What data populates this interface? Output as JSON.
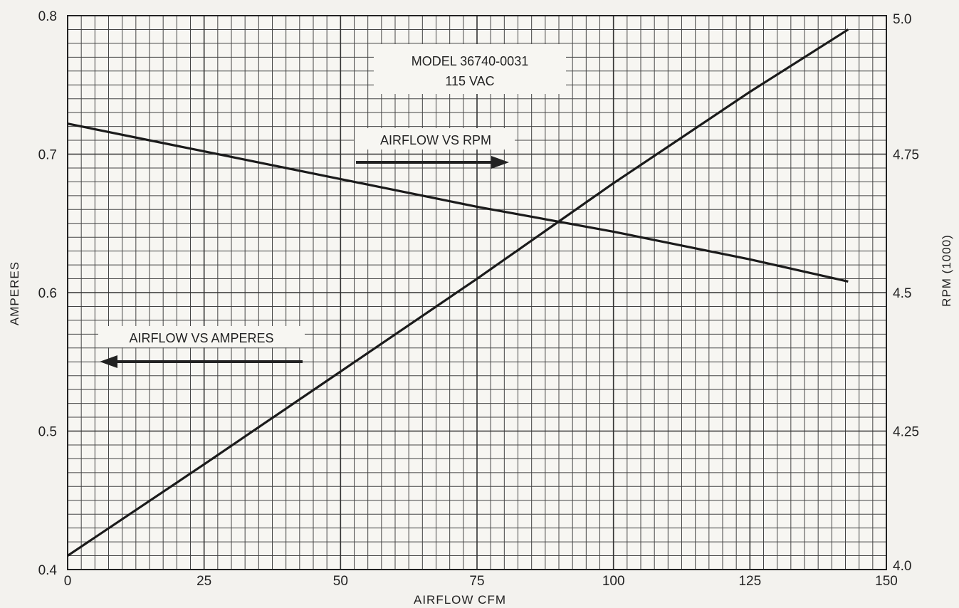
{
  "chart_data": {
    "type": "line",
    "xlabel": "AIRFLOW CFM",
    "ylabel_left": "AMPERES",
    "ylabel_right": "RPM (1000)",
    "xlim": [
      0,
      150
    ],
    "ylim_left": [
      0.4,
      0.8
    ],
    "ylim_right": [
      4.0,
      5.0
    ],
    "grid": true,
    "x_ticks": [
      "0",
      "25",
      "50",
      "75",
      "100",
      "125",
      "150"
    ],
    "y_left_ticks": [
      "0.4",
      "0.5",
      "0.6",
      "0.7",
      "0.8"
    ],
    "y_right_ticks": [
      "4.0",
      "4.25",
      "4.5",
      "4.75",
      "5.0"
    ],
    "annotations": {
      "model_line1": "MODEL 36740-0031",
      "model_line2": "115 VAC",
      "rpm_label": "AIRFLOW VS RPM",
      "amps_label": "AIRFLOW VS AMPERES"
    },
    "series": [
      {
        "name": "AIRFLOW VS RPM",
        "axis": "right",
        "x": [
          0,
          25,
          50,
          75,
          100,
          125,
          143
        ],
        "y": [
          4.805,
          4.755,
          4.705,
          4.655,
          4.61,
          4.56,
          4.52
        ]
      },
      {
        "name": "AIRFLOW VS AMPERES",
        "axis": "left",
        "x": [
          0,
          25,
          50,
          75,
          100,
          125,
          143
        ],
        "y": [
          0.41,
          0.476,
          0.543,
          0.61,
          0.679,
          0.745,
          0.79
        ]
      }
    ]
  }
}
